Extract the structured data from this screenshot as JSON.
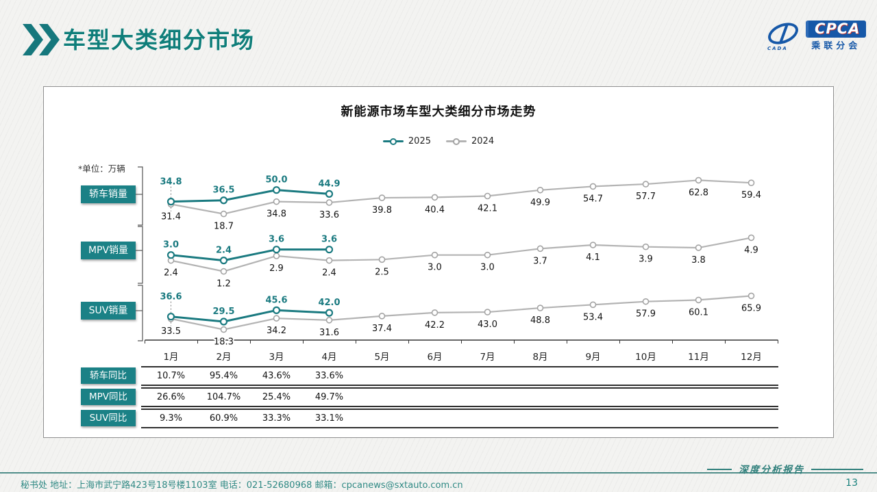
{
  "header": {
    "title": "车型大类细分市场"
  },
  "logo": {
    "cpca": "CPCA",
    "sub": "乘联分会",
    "cada": "CADA"
  },
  "chart": {
    "title": "新能源市场车型大类细分市场走势",
    "unit_note": "*单位：万辆",
    "legend": [
      {
        "label": "2025"
      },
      {
        "label": "2024"
      }
    ]
  },
  "chart_data": {
    "type": "line",
    "x": [
      "1月",
      "2月",
      "3月",
      "4月",
      "5月",
      "6月",
      "7月",
      "8月",
      "9月",
      "10月",
      "11月",
      "12月"
    ],
    "legend_position": "top",
    "grid": false,
    "sections": [
      {
        "label": "轿车销量",
        "series": [
          {
            "name": "2025",
            "values": [
              34.8,
              36.5,
              50.0,
              44.9
            ]
          },
          {
            "name": "2024",
            "values": [
              31.4,
              18.7,
              34.8,
              33.6,
              39.8,
              40.4,
              42.1,
              49.9,
              54.7,
              57.7,
              62.8,
              59.4
            ]
          }
        ]
      },
      {
        "label": "MPV销量",
        "series": [
          {
            "name": "2025",
            "values": [
              3.0,
              2.4,
              3.6,
              3.6
            ]
          },
          {
            "name": "2024",
            "values": [
              2.4,
              1.2,
              2.9,
              2.4,
              2.5,
              3.0,
              3.0,
              3.7,
              4.1,
              3.9,
              3.8,
              4.9
            ]
          }
        ]
      },
      {
        "label": "SUV销量",
        "series": [
          {
            "name": "2025",
            "values": [
              36.6,
              29.5,
              45.6,
              42.0
            ]
          },
          {
            "name": "2024",
            "values": [
              33.5,
              18.3,
              34.2,
              31.6,
              37.4,
              42.2,
              43.0,
              48.8,
              53.4,
              57.9,
              60.1,
              65.9
            ]
          }
        ]
      }
    ]
  },
  "table": {
    "rows": [
      {
        "label": "轿车同比",
        "values": [
          "10.7%",
          "95.4%",
          "43.6%",
          "33.6%"
        ]
      },
      {
        "label": "MPV同比",
        "values": [
          "26.6%",
          "104.7%",
          "25.4%",
          "49.7%"
        ]
      },
      {
        "label": "SUV同比",
        "values": [
          "9.3%",
          "60.9%",
          "33.3%",
          "33.1%"
        ]
      }
    ]
  },
  "footer": {
    "secretariat": "秘书处   地址：上海市武宁路423号18号楼1103室  电话：021-52680968   邮箱：cpcanews@sxtauto.com.cn",
    "report_label": "深度分析报告",
    "page_number": "13"
  },
  "colors": {
    "accent": "#1a7a80",
    "label_box": "#1b8186",
    "gray_line": "#b3b3b3",
    "gray_marker": "#a3a3a3",
    "header_title": "#0f7e7a",
    "logo_blue": "#1658a8",
    "footer_text": "#2f8984"
  }
}
